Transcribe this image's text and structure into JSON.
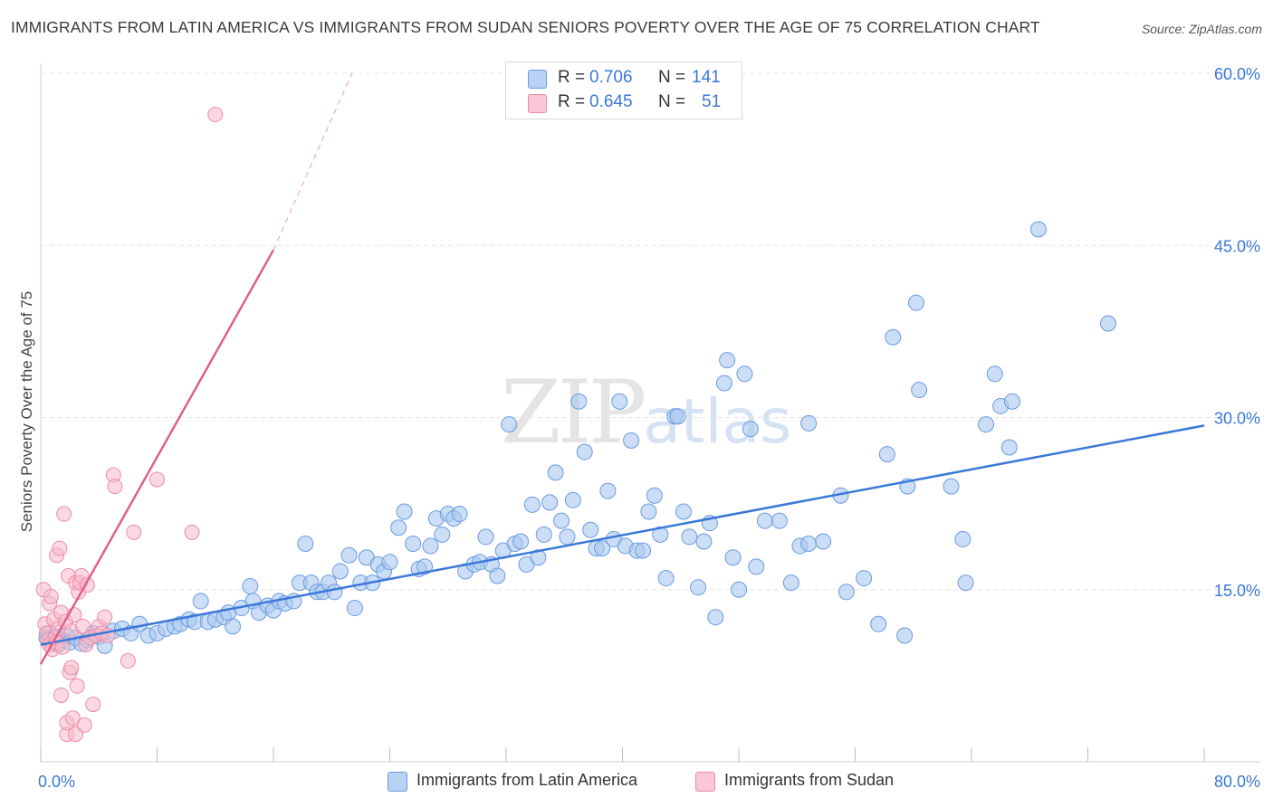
{
  "header": {
    "title": "IMMIGRANTS FROM LATIN AMERICA VS IMMIGRANTS FROM SUDAN SENIORS POVERTY OVER THE AGE OF 75 CORRELATION CHART",
    "source": "Source: ZipAtlas.com"
  },
  "watermark": {
    "zip": "ZIP",
    "atlas": "atlas"
  },
  "legend": {
    "r_label": "R =",
    "n_label": "N =",
    "series": [
      {
        "r": "0.706",
        "n": "141"
      },
      {
        "r": "0.645",
        "n": "51"
      }
    ]
  },
  "colors": {
    "blue_fill": "#a9c8f0",
    "blue_stroke": "#6b9be0",
    "blue_line": "#3a78d8",
    "pink_fill": "#f7b9cb",
    "pink_stroke": "#ee8aa8",
    "pink_line": "#e0608c",
    "grid": "#e5e5e5",
    "tick_label": "#3a78d8"
  },
  "chart_data": {
    "type": "scatter",
    "title": "IMMIGRANTS FROM LATIN AMERICA VS IMMIGRANTS FROM SUDAN SENIORS POVERTY OVER THE AGE OF 75 CORRELATION CHART",
    "xlabel": "",
    "ylabel": "Seniors Poverty Over the Age of 75",
    "xlim": [
      0,
      80
    ],
    "ylim": [
      0,
      60
    ],
    "x_tick_labels": [
      "0.0%",
      "80.0%"
    ],
    "y_tick_labels": [
      "15.0%",
      "30.0%",
      "45.0%",
      "60.0%"
    ],
    "y_ticks": [
      15,
      30,
      45,
      60
    ],
    "x_minor_ticks": [
      0,
      8,
      16,
      24,
      32,
      40,
      48,
      56,
      64,
      72,
      80
    ],
    "grid": true,
    "legend_position": "top-center",
    "series": [
      {
        "name": "Immigrants from Latin America",
        "color": "#a9c8f0",
        "trend": {
          "x": [
            0,
            80
          ],
          "y": [
            10.2,
            29.3
          ]
        },
        "points": [
          [
            0.4,
            10.8
          ],
          [
            0.6,
            11.2
          ],
          [
            0.8,
            10.5
          ],
          [
            1.0,
            10.9
          ],
          [
            1.2,
            10.2
          ],
          [
            1.5,
            10.6
          ],
          [
            1.8,
            11.0
          ],
          [
            2.0,
            10.4
          ],
          [
            2.4,
            10.8
          ],
          [
            2.8,
            10.3
          ],
          [
            3.2,
            10.6
          ],
          [
            3.6,
            11.2
          ],
          [
            4.0,
            10.9
          ],
          [
            4.4,
            10.1
          ],
          [
            5.0,
            11.4
          ],
          [
            5.6,
            11.6
          ],
          [
            6.2,
            11.2
          ],
          [
            6.8,
            12.0
          ],
          [
            7.4,
            11.0
          ],
          [
            8.0,
            11.2
          ],
          [
            8.6,
            11.6
          ],
          [
            9.2,
            11.8
          ],
          [
            9.6,
            12.0
          ],
          [
            10.2,
            12.4
          ],
          [
            10.6,
            12.2
          ],
          [
            11.0,
            14.0
          ],
          [
            11.5,
            12.2
          ],
          [
            12.0,
            12.4
          ],
          [
            12.6,
            12.6
          ],
          [
            12.9,
            13.0
          ],
          [
            13.2,
            11.8
          ],
          [
            13.8,
            13.4
          ],
          [
            14.4,
            15.3
          ],
          [
            14.6,
            14.0
          ],
          [
            15.0,
            13.0
          ],
          [
            15.6,
            13.6
          ],
          [
            16.0,
            13.2
          ],
          [
            16.4,
            14.0
          ],
          [
            16.8,
            13.8
          ],
          [
            17.4,
            14.0
          ],
          [
            17.8,
            15.6
          ],
          [
            18.2,
            19.0
          ],
          [
            18.6,
            15.6
          ],
          [
            19.0,
            14.8
          ],
          [
            19.4,
            14.8
          ],
          [
            19.8,
            15.6
          ],
          [
            20.2,
            14.8
          ],
          [
            20.6,
            16.6
          ],
          [
            21.2,
            18.0
          ],
          [
            21.6,
            13.4
          ],
          [
            22.0,
            15.6
          ],
          [
            22.4,
            17.8
          ],
          [
            22.8,
            15.6
          ],
          [
            23.2,
            17.2
          ],
          [
            23.6,
            16.6
          ],
          [
            24.0,
            17.4
          ],
          [
            24.6,
            20.4
          ],
          [
            25.0,
            21.8
          ],
          [
            25.6,
            19.0
          ],
          [
            26.0,
            16.8
          ],
          [
            26.4,
            17.0
          ],
          [
            26.8,
            18.8
          ],
          [
            27.2,
            21.2
          ],
          [
            27.6,
            19.8
          ],
          [
            28.0,
            21.6
          ],
          [
            28.4,
            21.2
          ],
          [
            28.8,
            21.6
          ],
          [
            29.2,
            16.6
          ],
          [
            29.8,
            17.2
          ],
          [
            30.2,
            17.4
          ],
          [
            30.6,
            19.6
          ],
          [
            31.0,
            17.2
          ],
          [
            31.4,
            16.2
          ],
          [
            31.8,
            18.4
          ],
          [
            32.2,
            29.4
          ],
          [
            32.6,
            19.0
          ],
          [
            33.0,
            19.2
          ],
          [
            33.4,
            17.2
          ],
          [
            33.8,
            22.4
          ],
          [
            34.2,
            17.8
          ],
          [
            34.6,
            19.8
          ],
          [
            35.0,
            22.6
          ],
          [
            35.4,
            25.2
          ],
          [
            35.8,
            21.0
          ],
          [
            36.2,
            19.6
          ],
          [
            36.6,
            22.8
          ],
          [
            37.0,
            31.4
          ],
          [
            37.4,
            27.0
          ],
          [
            37.8,
            20.2
          ],
          [
            38.2,
            18.6
          ],
          [
            38.6,
            18.6
          ],
          [
            39.0,
            23.6
          ],
          [
            39.4,
            19.4
          ],
          [
            39.8,
            31.4
          ],
          [
            40.2,
            18.8
          ],
          [
            40.6,
            28.0
          ],
          [
            41.0,
            18.4
          ],
          [
            41.4,
            18.4
          ],
          [
            41.8,
            21.8
          ],
          [
            42.2,
            23.2
          ],
          [
            42.6,
            19.8
          ],
          [
            43.0,
            16.0
          ],
          [
            43.6,
            30.1
          ],
          [
            43.8,
            30.1
          ],
          [
            44.2,
            21.8
          ],
          [
            44.6,
            19.6
          ],
          [
            45.2,
            15.2
          ],
          [
            45.6,
            19.2
          ],
          [
            46.0,
            20.8
          ],
          [
            46.4,
            12.6
          ],
          [
            47.0,
            33.0
          ],
          [
            47.2,
            35.0
          ],
          [
            47.6,
            17.8
          ],
          [
            48.0,
            15.0
          ],
          [
            48.4,
            33.8
          ],
          [
            48.8,
            29.0
          ],
          [
            49.2,
            17.0
          ],
          [
            49.8,
            21.0
          ],
          [
            50.8,
            21.0
          ],
          [
            51.6,
            15.6
          ],
          [
            52.2,
            18.8
          ],
          [
            52.8,
            29.5
          ],
          [
            52.8,
            19.0
          ],
          [
            53.8,
            19.2
          ],
          [
            55.0,
            23.2
          ],
          [
            55.4,
            14.8
          ],
          [
            56.6,
            16.0
          ],
          [
            57.6,
            12.0
          ],
          [
            58.2,
            26.8
          ],
          [
            58.6,
            37.0
          ],
          [
            59.4,
            11.0
          ],
          [
            59.6,
            24.0
          ],
          [
            60.2,
            40.0
          ],
          [
            60.4,
            32.4
          ],
          [
            62.6,
            24.0
          ],
          [
            63.4,
            19.4
          ],
          [
            63.6,
            15.6
          ],
          [
            65.0,
            29.4
          ],
          [
            65.6,
            33.8
          ],
          [
            66.0,
            31.0
          ],
          [
            66.6,
            27.4
          ],
          [
            66.8,
            31.4
          ],
          [
            68.6,
            46.4
          ],
          [
            73.4,
            38.2
          ]
        ]
      },
      {
        "name": "Immigrants from Sudan",
        "color": "#f7b9cb",
        "trend": {
          "x": [
            0,
            16
          ],
          "y": [
            8.5,
            44.6
          ]
        },
        "trend_dashed": {
          "x": [
            16,
            21.4
          ],
          "y": [
            44.6,
            60.0
          ]
        },
        "points": [
          [
            0.2,
            15.0
          ],
          [
            0.3,
            12.0
          ],
          [
            0.4,
            11.2
          ],
          [
            0.5,
            10.6
          ],
          [
            0.6,
            10.2
          ],
          [
            0.6,
            13.8
          ],
          [
            0.7,
            14.4
          ],
          [
            0.8,
            9.8
          ],
          [
            0.9,
            12.4
          ],
          [
            1.0,
            10.8
          ],
          [
            1.1,
            10.4
          ],
          [
            1.1,
            18.0
          ],
          [
            1.2,
            11.6
          ],
          [
            1.3,
            18.6
          ],
          [
            1.4,
            13.0
          ],
          [
            1.4,
            5.8
          ],
          [
            1.5,
            10.0
          ],
          [
            1.6,
            21.6
          ],
          [
            1.7,
            12.2
          ],
          [
            1.8,
            2.4
          ],
          [
            1.8,
            3.4
          ],
          [
            1.9,
            16.2
          ],
          [
            2.0,
            7.8
          ],
          [
            2.1,
            8.2
          ],
          [
            2.1,
            11.4
          ],
          [
            2.2,
            3.8
          ],
          [
            2.3,
            12.8
          ],
          [
            2.4,
            15.6
          ],
          [
            2.4,
            2.4
          ],
          [
            2.5,
            6.6
          ],
          [
            2.6,
            14.8
          ],
          [
            2.7,
            15.6
          ],
          [
            2.8,
            16.2
          ],
          [
            2.9,
            11.8
          ],
          [
            3.0,
            3.2
          ],
          [
            3.1,
            10.2
          ],
          [
            3.2,
            15.4
          ],
          [
            3.4,
            10.8
          ],
          [
            3.6,
            5.0
          ],
          [
            3.8,
            11.0
          ],
          [
            4.0,
            11.8
          ],
          [
            4.2,
            11.2
          ],
          [
            4.4,
            12.6
          ],
          [
            4.6,
            11.0
          ],
          [
            5.0,
            25.0
          ],
          [
            5.1,
            24.0
          ],
          [
            6.0,
            8.8
          ],
          [
            6.4,
            20.0
          ],
          [
            8.0,
            24.6
          ],
          [
            10.4,
            20.0
          ],
          [
            12.0,
            56.4
          ]
        ]
      }
    ]
  },
  "bottom_legend": {
    "items": [
      "Immigrants from Latin America",
      "Immigrants from Sudan"
    ]
  }
}
